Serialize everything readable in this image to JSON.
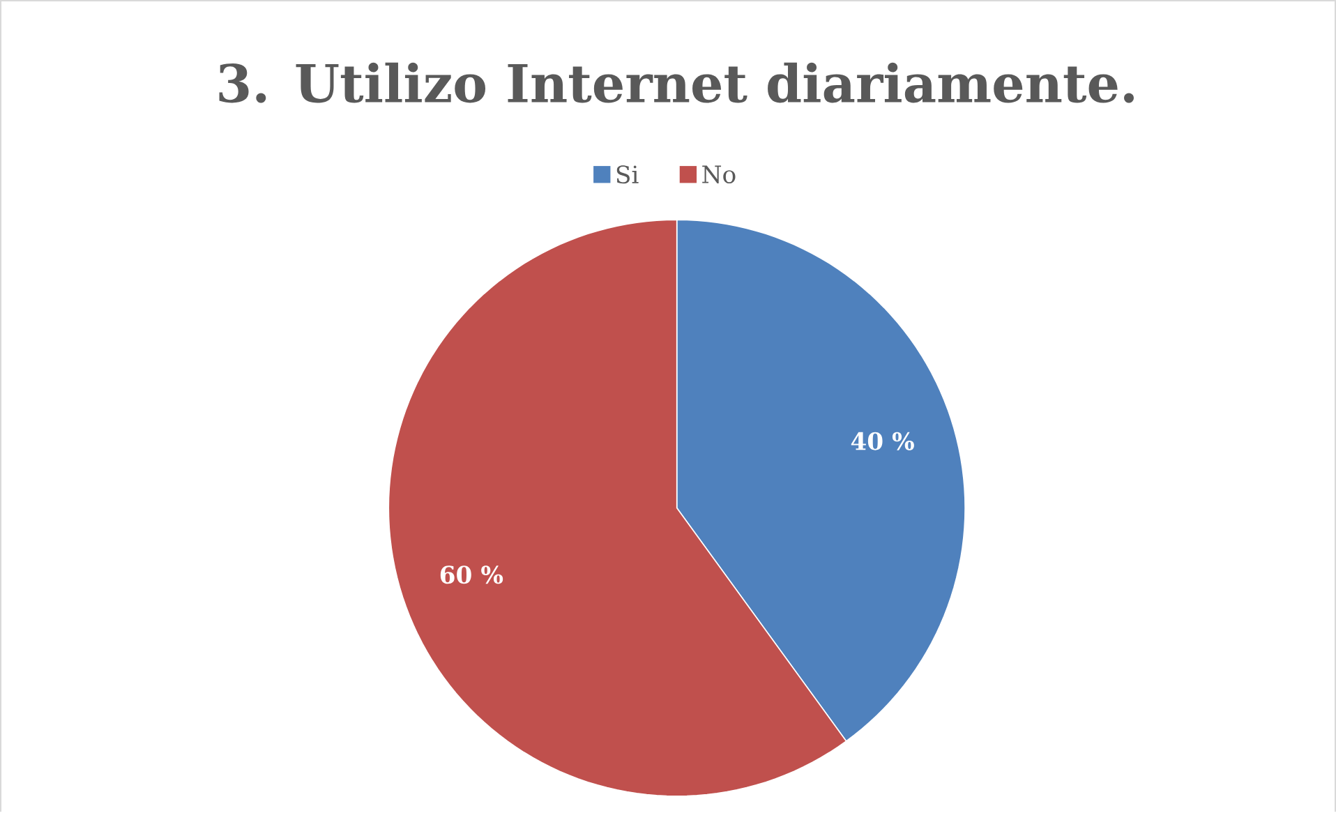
{
  "chart_data": {
    "type": "pie",
    "title": "3. Utilizo Internet diariamente.",
    "categories": [
      "Si",
      "No"
    ],
    "values": [
      40,
      60
    ],
    "colors": [
      "#4f81bd",
      "#c0504d"
    ],
    "value_labels": [
      "40 %",
      "60 %"
    ],
    "legend": "top"
  }
}
